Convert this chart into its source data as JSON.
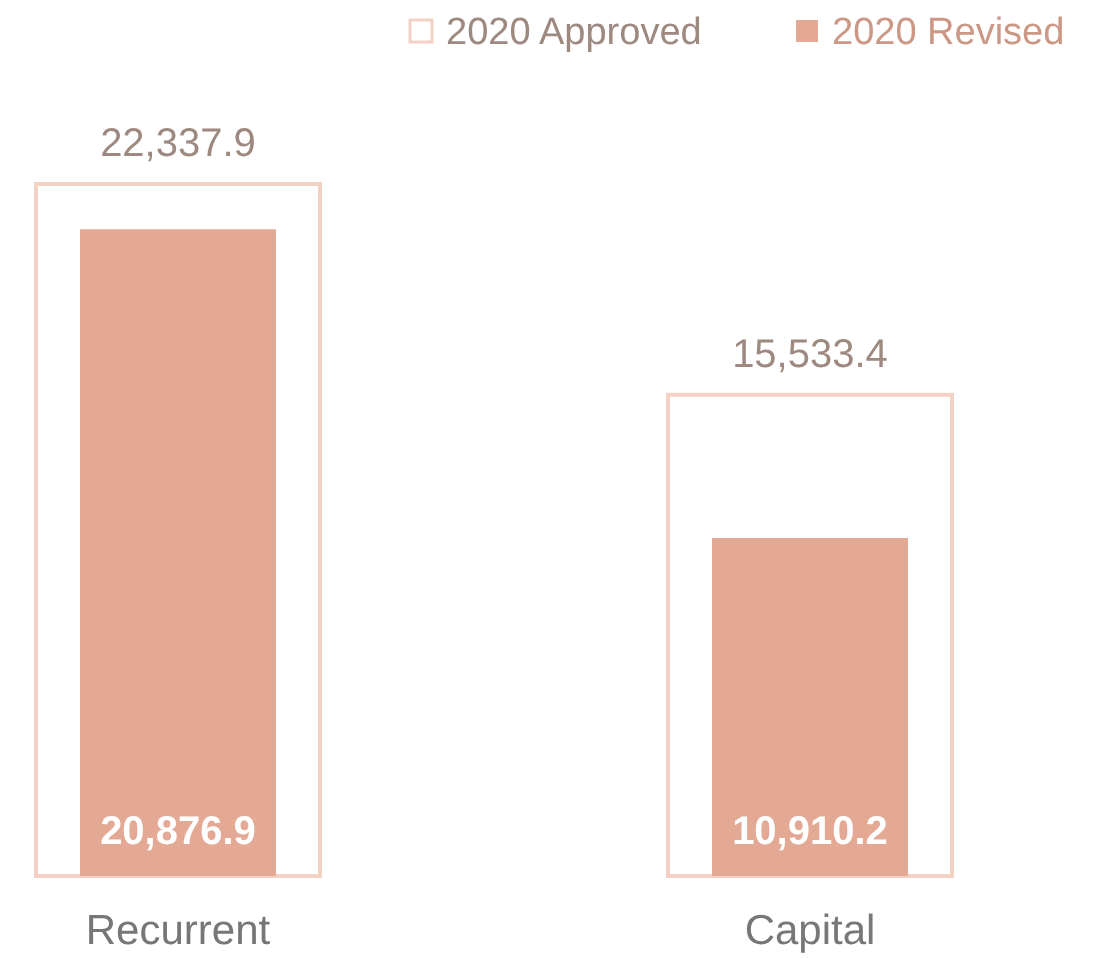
{
  "chart_data": {
    "type": "bar",
    "categories": [
      "Recurrent",
      "Capital"
    ],
    "series": [
      {
        "name": "2020 Approved",
        "color": "#f3d2c5",
        "values": [
          22337.9,
          15533.4
        ],
        "value_labels": [
          "22,337.9",
          "15,533.4"
        ]
      },
      {
        "name": "2020 Revised",
        "color": "#e3a994",
        "values": [
          20876.9,
          10910.2
        ],
        "value_labels": [
          "20,876.9",
          "10,910.2"
        ]
      }
    ],
    "legend": "top right"
  }
}
